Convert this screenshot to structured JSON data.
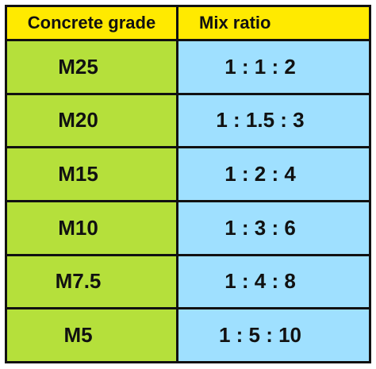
{
  "table": {
    "headers": [
      "Concrete grade",
      "Mix ratio"
    ],
    "rows": [
      {
        "grade": "M25",
        "ratio": "1 : 1 : 2"
      },
      {
        "grade": "M20",
        "ratio": "1 : 1.5 : 3"
      },
      {
        "grade": "M15",
        "ratio": "1 : 2 : 4"
      },
      {
        "grade": "M10",
        "ratio": "1 : 3 : 6"
      },
      {
        "grade": "M7.5",
        "ratio": "1 : 4 : 8"
      },
      {
        "grade": "M5",
        "ratio": "1 : 5 : 10"
      }
    ],
    "colors": {
      "header": "#ffea00",
      "grade_column": "#b5e03b",
      "ratio_column": "#9fe0ff",
      "border": "#111111"
    }
  }
}
